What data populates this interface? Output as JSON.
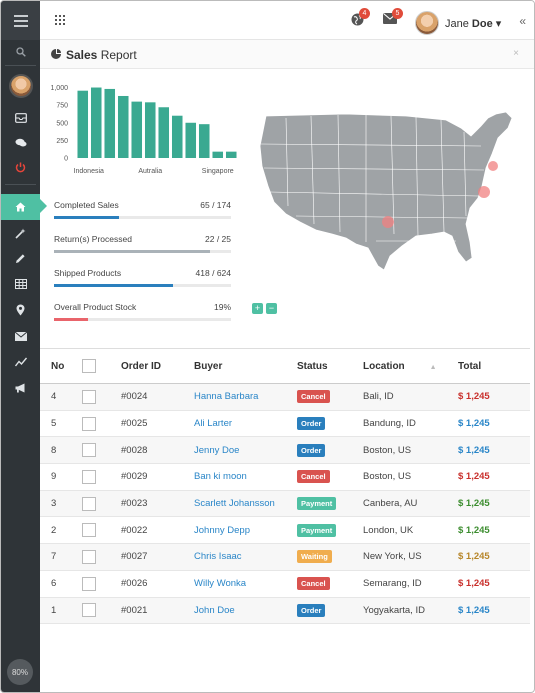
{
  "sidebar": {
    "zoom": "80%"
  },
  "header": {
    "notifications_count": "4",
    "messages_count": "5",
    "user_first": "Jane",
    "user_last": "Doe",
    "user_caret": "▾",
    "collapse": "«"
  },
  "panel": {
    "title_bold": "Sales",
    "title_rest": " Report",
    "close": "×"
  },
  "chart_data": {
    "type": "bar",
    "categories": [
      "Indonesia",
      "",
      "",
      "",
      "",
      "Autralia",
      "",
      "",
      "",
      "",
      "Singapore",
      ""
    ],
    "values": [
      955,
      1000,
      980,
      880,
      800,
      790,
      720,
      600,
      500,
      480,
      90,
      90
    ],
    "color": "#3aa991",
    "ytick_labels": [
      "0",
      "250",
      "500",
      "750",
      "1,000"
    ],
    "ylim": [
      0,
      1050
    ],
    "xtick_labels": [
      "Indonesia",
      "Autralia",
      "Singapore"
    ]
  },
  "progress": [
    {
      "label": "Completed Sales",
      "value": "65 / 174",
      "fraction": 0.37,
      "color": "#2a7fbd"
    },
    {
      "label": "Return(s) Processed",
      "value": "22 / 25",
      "fraction": 0.88,
      "color": "#aab2b8"
    },
    {
      "label": "Shipped Products",
      "value": "418 / 624",
      "fraction": 0.67,
      "color": "#2a7fbd"
    },
    {
      "label": "Overall Product Stock",
      "value": "19%",
      "fraction": 0.19,
      "color": "#e9646b"
    }
  ],
  "controls": {
    "plus": "+",
    "minus": "−"
  },
  "table": {
    "headers": [
      "No",
      "",
      "Order ID",
      "Buyer",
      "Status",
      "Location",
      "Total"
    ],
    "rows": [
      {
        "no": "4",
        "order": "#0024",
        "buyer": "Hanna Barbara",
        "status": "Cancel",
        "status_color": "#d9534f",
        "location": "Bali, ID",
        "total": "$ 1,245",
        "total_color": "#c9302c"
      },
      {
        "no": "5",
        "order": "#0025",
        "buyer": "Ali Larter",
        "status": "Order",
        "status_color": "#2a7fbd",
        "location": "Bandung, ID",
        "total": "$ 1,245",
        "total_color": "#2a86c8"
      },
      {
        "no": "8",
        "order": "#0028",
        "buyer": "Jenny Doe",
        "status": "Order",
        "status_color": "#2a7fbd",
        "location": "Boston, US",
        "total": "$ 1,245",
        "total_color": "#2a86c8"
      },
      {
        "no": "9",
        "order": "#0029",
        "buyer": "Ban ki moon",
        "status": "Cancel",
        "status_color": "#d9534f",
        "location": "Boston, US",
        "total": "$ 1,245",
        "total_color": "#c9302c"
      },
      {
        "no": "3",
        "order": "#0023",
        "buyer": "Scarlett Johansson",
        "status": "Payment",
        "status_color": "#4fc0a3",
        "location": "Canbera, AU",
        "total": "$ 1,245",
        "total_color": "#3c8d2f"
      },
      {
        "no": "2",
        "order": "#0022",
        "buyer": "Johnny Depp",
        "status": "Payment",
        "status_color": "#4fc0a3",
        "location": "London, UK",
        "total": "$ 1,245",
        "total_color": "#3c8d2f"
      },
      {
        "no": "7",
        "order": "#0027",
        "buyer": "Chris Isaac",
        "status": "Waiting",
        "status_color": "#f0ad4e",
        "location": "New York, US",
        "total": "$ 1,245",
        "total_color": "#b7862a"
      },
      {
        "no": "6",
        "order": "#0026",
        "buyer": "Willy Wonka",
        "status": "Cancel",
        "status_color": "#d9534f",
        "location": "Semarang, ID",
        "total": "$ 1,245",
        "total_color": "#c9302c"
      },
      {
        "no": "1",
        "order": "#0021",
        "buyer": "John Doe",
        "status": "Order",
        "status_color": "#2a7fbd",
        "location": "Yogyakarta, ID",
        "total": "$ 1,245",
        "total_color": "#2a86c8"
      }
    ]
  }
}
